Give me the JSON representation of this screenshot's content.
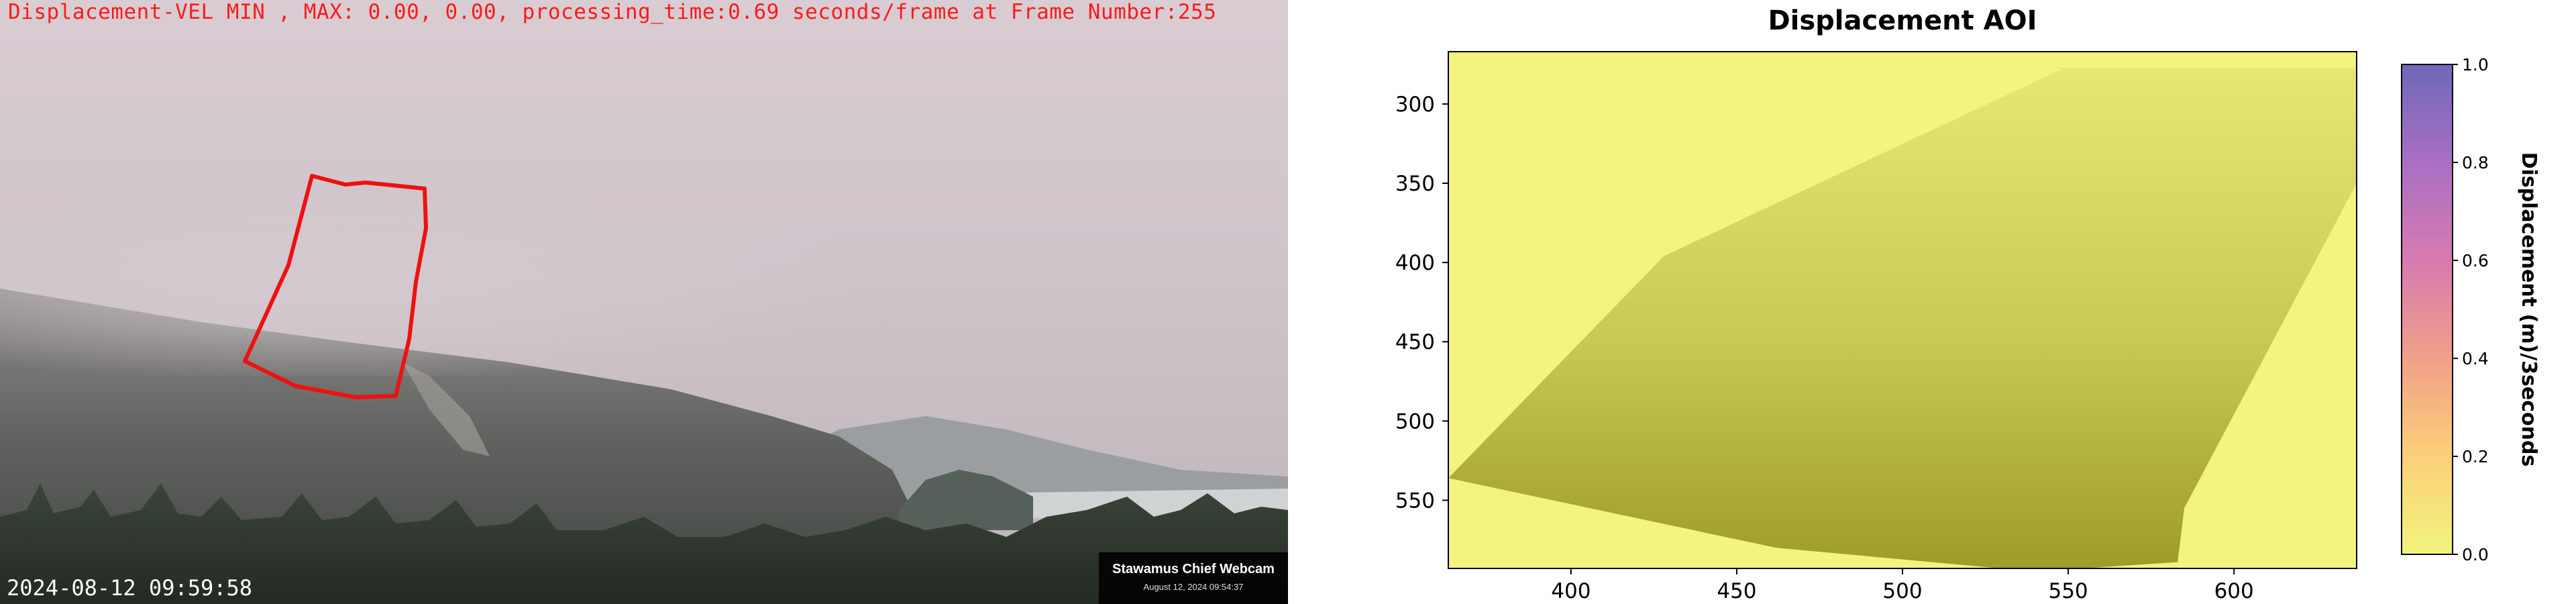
{
  "webcam": {
    "status_line": "Displacement-VEL MIN , MAX: 0.00, 0.00, processing_time:0.69 seconds/frame at Frame Number:255",
    "timestamp": "2024-08-12 09:59:58",
    "badge_title": "Stawamus Chief Webcam",
    "badge_date": "August 12, 2024 09:54:37",
    "aoi_outline_color": "#ee1111",
    "status_color": "#ff1a1a"
  },
  "chart_data": {
    "type": "heatmap",
    "title": "Displacement AOI",
    "xlabel": "",
    "ylabel": "",
    "xlim": [
      363,
      637
    ],
    "ylim": [
      593,
      267
    ],
    "y_inverted": true,
    "x_ticks": [
      400,
      450,
      500,
      550,
      600
    ],
    "y_ticks": [
      300,
      350,
      400,
      450,
      500,
      550
    ],
    "aoi_polygon": [
      [
        545,
        277
      ],
      [
        637,
        277
      ],
      [
        637,
        350
      ],
      [
        585,
        555
      ],
      [
        583,
        589
      ],
      [
        540,
        595
      ],
      [
        462,
        580
      ],
      [
        363,
        536
      ],
      [
        428,
        396
      ],
      [
        548,
        278
      ]
    ],
    "colorbar": {
      "label": "Displacement (m)/3seconds",
      "range": [
        0.0,
        1.0
      ],
      "ticks": [
        "0.0",
        "0.2",
        "0.4",
        "0.6",
        "0.8",
        "1.0"
      ],
      "colormap": [
        "#f2f47c",
        "#fbd07a",
        "#f0a089",
        "#d87ab0",
        "#a96fc4",
        "#6f68b8"
      ],
      "placement": "right"
    },
    "grid": false,
    "background_value": 0.0,
    "colors": {
      "background": "#f2f47e",
      "aoi_top": "#e6e874",
      "aoi_mid": "#c8c754",
      "aoi_bottom": "#9e9b26"
    }
  }
}
